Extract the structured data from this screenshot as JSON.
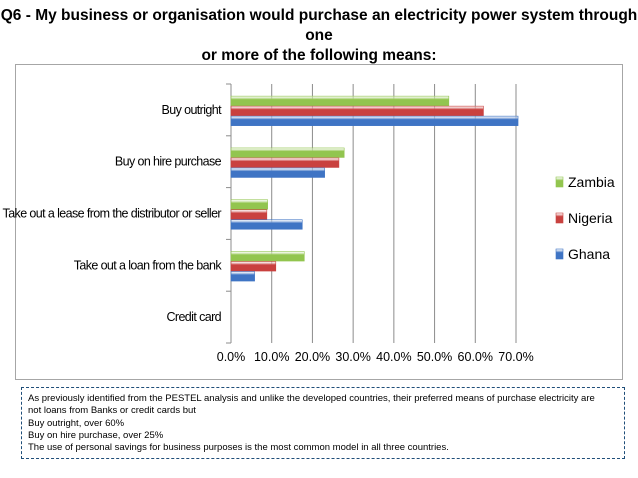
{
  "title_line1": "Q6 - My business or organisation would purchase an electricity power system through one",
  "title_line2": "or more of the following means:",
  "chart_data": {
    "type": "bar",
    "orientation": "horizontal",
    "categories": [
      "Buy outright",
      "Buy on hire purchase",
      "Take out a lease from the distributor or seller",
      "Take out a loan from the bank",
      "Credit card"
    ],
    "series": [
      {
        "name": "Zambia",
        "color": "#92c54f",
        "values": [
          53.5,
          27.8,
          9.0,
          18.0,
          0.0
        ]
      },
      {
        "name": "Nigeria",
        "color": "#c9413f",
        "values": [
          62.0,
          26.5,
          8.8,
          11.0,
          0.0
        ]
      },
      {
        "name": "Ghana",
        "color": "#3f74c4",
        "values": [
          70.5,
          23.0,
          17.5,
          5.8,
          0.0
        ]
      }
    ],
    "xlim": [
      0,
      70
    ],
    "xticks": [
      "0.0%",
      "10.0%",
      "20.0%",
      "30.0%",
      "40.0%",
      "50.0%",
      "60.0%",
      "70.0%"
    ],
    "grid": true,
    "legend_position": "right"
  },
  "note": {
    "lines": [
      "As previously identified from the PESTEL analysis and unlike the developed countries, their preferred means of purchase electricity are",
      "not loans from Banks or credit cards but",
      "Buy outright, over 60%",
      "Buy on hire purchase, over 25%",
      "The use of personal savings for business purposes is the most common model in all three countries."
    ]
  }
}
